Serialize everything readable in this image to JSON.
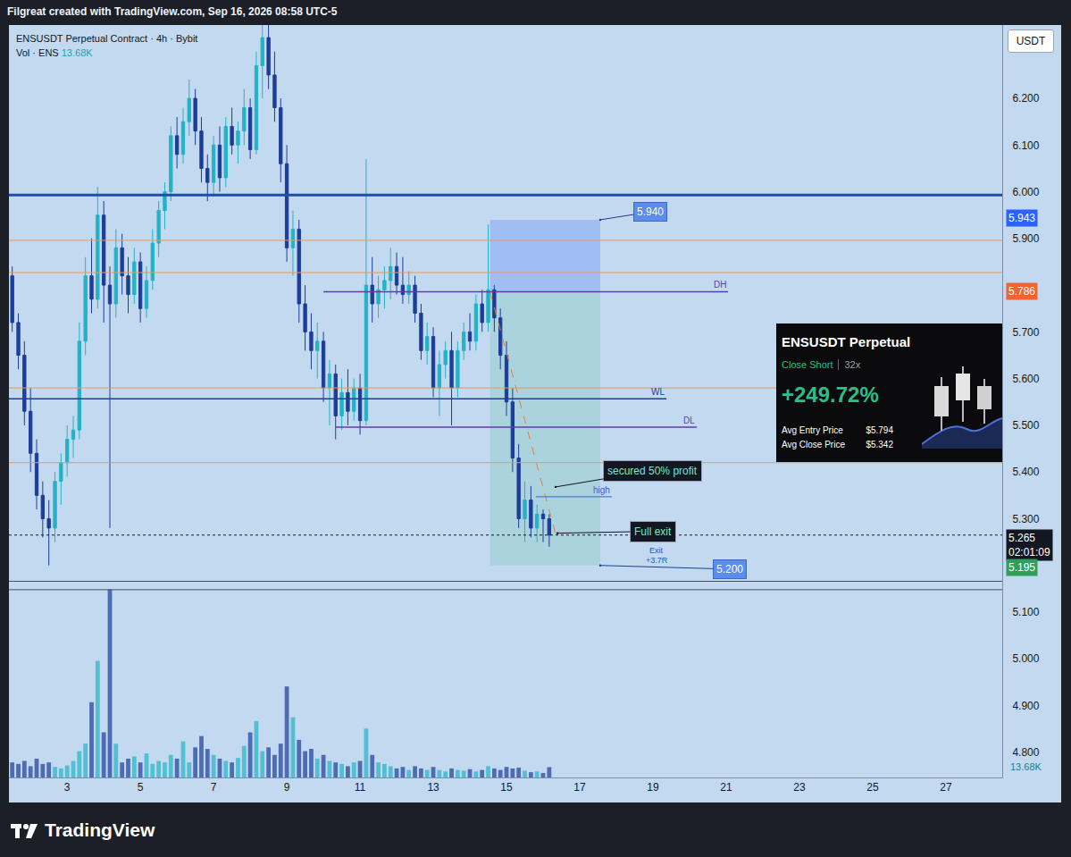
{
  "header": {
    "credit": "Filgreat created with TradingView.com, Sep 16, 2026 08:58 UTC-5",
    "currency": "USDT"
  },
  "footer": {
    "brand": "TradingView"
  },
  "card": {
    "title": "ENSUSDT Perpetual",
    "action": "Close Short",
    "leverage": "32x",
    "pnl": "+249.72%",
    "rows": [
      [
        "Avg Entry Price",
        "$5.794"
      ],
      [
        "Avg Close Price",
        "$5.342"
      ]
    ]
  },
  "chart_data": {
    "type": "candlestick",
    "title": "ENSUSDT Perpetual Contract · 4h · Bybit",
    "x": [
      1.5,
      1.667,
      1.833,
      2,
      2.167,
      2.333,
      2.5,
      2.667,
      2.833,
      3,
      3.167,
      3.333,
      3.5,
      3.667,
      3.833,
      4,
      4.167,
      4.333,
      4.5,
      4.667,
      4.833,
      5,
      5.167,
      5.333,
      5.5,
      5.667,
      5.833,
      6,
      6.167,
      6.333,
      6.5,
      6.667,
      6.833,
      7,
      7.167,
      7.333,
      7.5,
      7.667,
      7.833,
      8,
      8.167,
      8.333,
      8.5,
      8.667,
      8.833,
      9,
      9.167,
      9.333,
      9.5,
      9.667,
      9.833,
      10,
      10.167,
      10.333,
      10.5,
      10.667,
      10.833,
      11,
      11.167,
      11.333,
      11.5,
      11.667,
      11.833,
      12,
      12.167,
      12.333,
      12.5,
      12.667,
      12.833,
      13,
      13.167,
      13.333,
      13.5,
      13.667,
      13.833,
      14,
      14.167,
      14.333,
      14.5,
      14.667,
      14.833,
      15,
      15.167,
      15.333,
      15.5,
      15.667,
      15.833,
      16,
      16.167
    ],
    "series": [
      {
        "name": "ENSUSDT",
        "type": "candlestick",
        "color": {
          "up": "#24b3c6",
          "down": "#1d3d99"
        },
        "open": [
          5.82,
          5.72,
          5.65,
          5.53,
          5.44,
          5.35,
          5.3,
          5.28,
          5.38,
          5.42,
          5.47,
          5.49,
          5.68,
          5.82,
          5.77,
          5.95,
          5.8,
          5.76,
          5.88,
          5.82,
          5.78,
          5.85,
          5.75,
          5.81,
          5.89,
          5.96,
          6.0,
          6.12,
          6.08,
          6.15,
          6.2,
          6.13,
          6.05,
          6.02,
          6.1,
          6.03,
          6.14,
          6.1,
          6.13,
          6.18,
          6.09,
          6.27,
          6.33,
          6.25,
          6.18,
          6.06,
          5.88,
          5.92,
          5.76,
          5.7,
          5.66,
          5.68,
          5.58,
          5.61,
          5.52,
          5.57,
          5.53,
          5.58,
          5.51,
          5.8,
          5.76,
          5.79,
          5.81,
          5.84,
          5.8,
          5.78,
          5.8,
          5.74,
          5.66,
          5.69,
          5.58,
          5.63,
          5.66,
          5.58,
          5.66,
          5.7,
          5.68,
          5.76,
          5.72,
          5.79,
          5.73,
          5.65,
          5.55,
          5.43,
          5.3,
          5.34,
          5.28,
          5.31,
          5.3
        ],
        "high": [
          5.84,
          5.74,
          5.68,
          5.58,
          5.47,
          5.38,
          5.34,
          5.4,
          5.44,
          5.5,
          5.52,
          5.72,
          5.86,
          5.9,
          6.01,
          5.98,
          5.84,
          5.92,
          5.91,
          5.86,
          5.88,
          5.87,
          5.84,
          5.92,
          5.98,
          6.02,
          6.14,
          6.16,
          6.18,
          6.24,
          6.22,
          6.16,
          6.08,
          6.12,
          6.14,
          6.16,
          6.18,
          6.15,
          6.22,
          6.2,
          6.3,
          6.4,
          6.38,
          6.3,
          6.2,
          6.1,
          5.96,
          5.94,
          5.8,
          5.74,
          5.72,
          5.7,
          5.64,
          5.63,
          5.6,
          5.62,
          5.6,
          5.61,
          6.07,
          5.86,
          5.82,
          5.84,
          5.88,
          5.87,
          5.86,
          5.83,
          5.82,
          5.76,
          5.72,
          5.71,
          5.66,
          5.68,
          5.7,
          5.68,
          5.72,
          5.74,
          5.78,
          5.79,
          5.93,
          5.8,
          5.75,
          5.68,
          5.58,
          5.46,
          5.38,
          5.37,
          5.33,
          5.32,
          5.31
        ],
        "low": [
          5.7,
          5.62,
          5.5,
          5.4,
          5.32,
          5.26,
          5.2,
          5.25,
          5.33,
          5.39,
          5.43,
          5.47,
          5.65,
          5.74,
          5.75,
          5.72,
          5.28,
          5.73,
          5.78,
          5.74,
          5.76,
          5.72,
          5.73,
          5.79,
          5.86,
          5.92,
          5.98,
          6.05,
          6.06,
          6.12,
          6.1,
          6.02,
          5.98,
          5.99,
          6.0,
          6.01,
          6.08,
          6.06,
          6.1,
          6.07,
          6.08,
          6.2,
          6.22,
          6.15,
          6.02,
          5.85,
          5.82,
          5.72,
          5.66,
          5.62,
          5.6,
          5.55,
          5.5,
          5.47,
          5.49,
          5.5,
          5.51,
          5.48,
          5.5,
          5.72,
          5.73,
          5.75,
          5.77,
          5.78,
          5.76,
          5.76,
          5.72,
          5.64,
          5.63,
          5.56,
          5.52,
          5.6,
          5.5,
          5.56,
          5.64,
          5.66,
          5.66,
          5.7,
          5.7,
          5.7,
          5.62,
          5.52,
          5.4,
          5.28,
          5.25,
          5.26,
          5.25,
          5.25,
          5.24
        ],
        "close": [
          5.72,
          5.65,
          5.53,
          5.44,
          5.35,
          5.3,
          5.28,
          5.38,
          5.42,
          5.47,
          5.49,
          5.68,
          5.82,
          5.77,
          5.95,
          5.8,
          5.76,
          5.88,
          5.82,
          5.78,
          5.85,
          5.75,
          5.81,
          5.89,
          5.96,
          6.0,
          6.12,
          6.08,
          6.15,
          6.2,
          6.13,
          6.05,
          6.02,
          6.1,
          6.03,
          6.14,
          6.1,
          6.13,
          6.18,
          6.09,
          6.27,
          6.33,
          6.25,
          6.18,
          6.06,
          5.88,
          5.92,
          5.76,
          5.7,
          5.66,
          5.68,
          5.58,
          5.61,
          5.52,
          5.57,
          5.53,
          5.58,
          5.51,
          5.8,
          5.76,
          5.79,
          5.81,
          5.84,
          5.8,
          5.78,
          5.8,
          5.74,
          5.66,
          5.69,
          5.58,
          5.63,
          5.66,
          5.58,
          5.66,
          5.7,
          5.68,
          5.76,
          5.72,
          5.79,
          5.73,
          5.65,
          5.55,
          5.43,
          5.3,
          5.34,
          5.28,
          5.31,
          5.3,
          5.265
        ]
      },
      {
        "name": "Vol · ENS",
        "type": "bar",
        "axis": "y2",
        "values": [
          20,
          18,
          22,
          15,
          25,
          18,
          20,
          14,
          12,
          16,
          22,
          35,
          45,
          100,
          155,
          60,
          250,
          45,
          20,
          25,
          28,
          20,
          32,
          18,
          22,
          20,
          30,
          25,
          48,
          20,
          40,
          55,
          38,
          30,
          25,
          22,
          20,
          26,
          42,
          60,
          75,
          35,
          40,
          30,
          45,
          121,
          80,
          50,
          35,
          38,
          25,
          30,
          22,
          20,
          18,
          15,
          20,
          22,
          65,
          30,
          20,
          18,
          15,
          12,
          14,
          10,
          15,
          12,
          10,
          14,
          10,
          8,
          12,
          10,
          9,
          11,
          8,
          10,
          15,
          12,
          10,
          14,
          12,
          13,
          9,
          7,
          8,
          6,
          13.68
        ]
      }
    ],
    "xlim": [
      1.41,
      28.54
    ],
    "xticks": [
      3,
      5,
      7,
      9,
      11,
      13,
      15,
      17,
      19,
      21,
      23,
      25,
      27
    ],
    "ylim": [
      4.746,
      6.357
    ],
    "yticks": [
      {
        "value": 4.8,
        "label": "4.800"
      },
      {
        "value": 4.9,
        "label": "4.900"
      },
      {
        "value": 5.0,
        "label": "5.000"
      },
      {
        "value": 5.1,
        "label": "5.100"
      },
      {
        "value": 5.3,
        "label": "5.300"
      },
      {
        "value": 5.4,
        "label": "5.400"
      },
      {
        "value": 5.5,
        "label": "5.500"
      },
      {
        "value": 5.6,
        "label": "5.600"
      },
      {
        "value": 5.7,
        "label": "5.700"
      },
      {
        "value": 5.9,
        "label": "5.900"
      },
      {
        "value": 6.0,
        "label": "6.000"
      },
      {
        "value": 6.1,
        "label": "6.100"
      },
      {
        "value": 6.2,
        "label": "6.200"
      }
    ],
    "y2lim": [
      0,
      1000
    ],
    "y2ticks": [
      {
        "value": 13.68,
        "label": "13.68K"
      }
    ],
    "grid": false,
    "levels": [
      {
        "value": 5.993,
        "color": "#1f4fa0",
        "line_style": "thick"
      },
      {
        "value": 5.896,
        "color": "#e89a5a",
        "line_style": "thin"
      },
      {
        "value": 5.827,
        "color": "#e89a5a",
        "line_style": "thin"
      },
      {
        "value": 5.58,
        "color": "#e89a5a",
        "line_style": "thin"
      },
      {
        "value": 5.42,
        "color": "#e89a5a",
        "line_style": "thin"
      },
      {
        "value": 5.557,
        "color": "#1f3f8f",
        "line_style": "medium",
        "start": 1.41,
        "end": 19.37,
        "label": "WL"
      },
      {
        "value": 5.786,
        "color": "#5b3fa6",
        "line_style": "medium",
        "start": 10.0,
        "end": 21.05,
        "label": "DH"
      },
      {
        "value": 5.496,
        "color": "#5b3fa6",
        "line_style": "medium",
        "start": 10.34,
        "end": 20.2,
        "label": "DL"
      },
      {
        "value": 5.347,
        "color": "#3a64c8",
        "line_style": "thin",
        "start": 15.8,
        "end": 17.88,
        "label": "high"
      },
      {
        "value": 5.166,
        "color": "#44506a",
        "line_style": "thin"
      },
      {
        "value": 5.148,
        "color": "#44506a",
        "line_style": "thin"
      },
      {
        "value": 5.265,
        "color": "#131722",
        "line_style": "dotted"
      }
    ],
    "position": {
      "x_start": 14.55,
      "x_end": 17.56,
      "stop": 5.94,
      "entry": 5.786,
      "target": 5.2,
      "exit_x": 16.35,
      "exit": 5.265
    },
    "tags": [
      {
        "text": "5.940",
        "x": 17.56,
        "y": 5.94,
        "ax": 18.93,
        "ay": 5.957
      },
      {
        "text": "5.200",
        "x": 17.56,
        "y": 5.2,
        "ax": 21.1,
        "ay": 5.192
      }
    ],
    "callouts": [
      {
        "text": "secured 50% profit",
        "x": 16.34,
        "y": 5.368,
        "ax": 19.0,
        "ay": 5.403
      },
      {
        "text": "Full exit",
        "x": 16.39,
        "y": 5.269,
        "ax": 19.0,
        "ay": 5.273
      }
    ],
    "notes": [
      {
        "text": "Exit",
        "x": 19.1,
        "y": 5.232
      },
      {
        "text": "+3.7R",
        "x": 19.1,
        "y": 5.211
      }
    ],
    "price_labels": [
      {
        "value": 5.943,
        "label": "5.943",
        "color": "#2962ff"
      },
      {
        "value": 5.786,
        "label": "5.786",
        "color": "#f0652f"
      },
      {
        "value": 5.265,
        "label": "5.265",
        "sublabel": "02:01:09",
        "color": "#131722"
      },
      {
        "value": 5.195,
        "label": "5.195",
        "color": "#2ea05a"
      }
    ]
  }
}
